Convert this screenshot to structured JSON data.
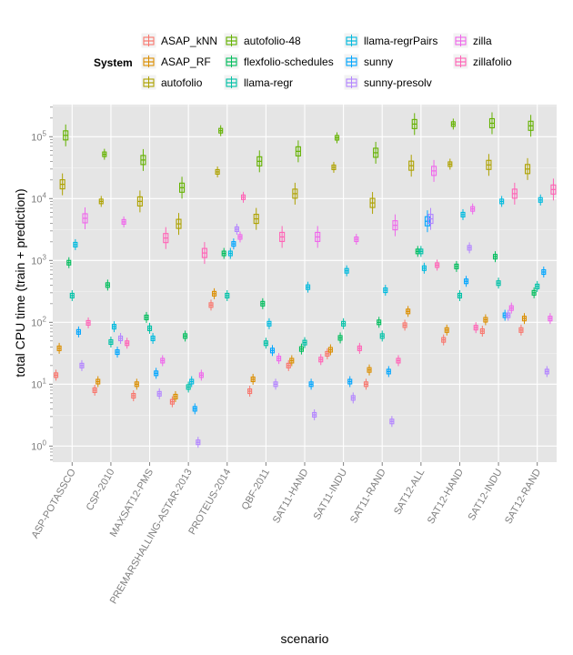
{
  "chart_data": {
    "type": "box",
    "xlabel": "scenario",
    "ylabel": "total CPU time (train + prediction)",
    "yscale": "log10",
    "ylim": [
      0.55,
      330000
    ],
    "y_ticks": [
      {
        "value": 1,
        "base": "10",
        "exp": "0"
      },
      {
        "value": 10,
        "base": "10",
        "exp": "1"
      },
      {
        "value": 100,
        "base": "10",
        "exp": "2"
      },
      {
        "value": 1000,
        "base": "10",
        "exp": "3"
      },
      {
        "value": 10000,
        "base": "10",
        "exp": "4"
      },
      {
        "value": 100000,
        "base": "10",
        "exp": "5"
      }
    ],
    "grid": true,
    "legend_position": "top",
    "legend_title": "System",
    "categories": [
      "ASP-POTASSCO",
      "CSP-2010",
      "MAXSAT12-PMS",
      "PREMARSHALLING-ASTAR-2013",
      "PROTEUS-2014",
      "QBF-2011",
      "SAT11-HAND",
      "SAT11-INDU",
      "SAT11-RAND",
      "SAT12-ALL",
      "SAT12-HAND",
      "SAT12-INDU",
      "SAT12-RAND"
    ],
    "series": [
      {
        "name": "ASAP_kNN",
        "color": "#F8766D",
        "values": [
          14,
          8,
          6.5,
          5.2,
          190,
          7.7,
          20,
          31,
          10,
          90,
          52,
          72,
          75
        ]
      },
      {
        "name": "ASAP_RF",
        "color": "#DB8E00",
        "values": [
          38,
          11,
          10,
          6.3,
          290,
          12,
          24,
          36,
          17,
          150,
          75,
          110,
          115
        ]
      },
      {
        "name": "autofolio",
        "color": "#AEA200",
        "values": [
          17000,
          9000,
          9000,
          3900,
          27000,
          4700,
          12000,
          32000,
          8500,
          34000,
          36000,
          35000,
          30000
        ]
      },
      {
        "name": "autofolio-48",
        "color": "#64B200",
        "values": [
          105000,
          52000,
          42000,
          15000,
          125000,
          40000,
          58000,
          96000,
          55000,
          160000,
          160000,
          165000,
          150000
        ]
      },
      {
        "name": "flexfolio-schedules",
        "color": "#00BD5C",
        "values": [
          920,
          400,
          120,
          60,
          1300,
          200,
          37,
          56,
          100,
          1400,
          800,
          1150,
          300
        ]
      },
      {
        "name": "llama-regr",
        "color": "#00C1A7",
        "values": [
          270,
          48,
          80,
          9,
          270,
          46,
          47,
          95,
          60,
          1400,
          270,
          430,
          380
        ]
      },
      {
        "name": "llama-regrPairs",
        "color": "#00BADE",
        "values": [
          1800,
          85,
          55,
          11,
          1300,
          95,
          370,
          680,
          330,
          750,
          5500,
          9000,
          9500
        ]
      },
      {
        "name": "sunny",
        "color": "#00A6FF",
        "values": [
          70,
          33,
          15,
          4,
          1850,
          35,
          10,
          11,
          16,
          4300,
          460,
          130,
          650
        ]
      },
      {
        "name": "sunny-presolv",
        "color": "#B385FF",
        "values": [
          20,
          55,
          7,
          1.15,
          3200,
          10,
          3.2,
          6,
          2.5,
          4700,
          1600,
          130,
          16
        ]
      },
      {
        "name": "zilla",
        "color": "#EF67EB",
        "values": [
          4800,
          4200,
          24,
          14,
          2400,
          26,
          2400,
          2200,
          3700,
          28000,
          6800,
          170,
          115
        ]
      },
      {
        "name": "zillafolio",
        "color": "#FF63B6",
        "values": [
          98,
          46,
          2300,
          1320,
          10500,
          2400,
          25,
          38,
          24,
          840,
          82,
          12000,
          14000
        ]
      }
    ]
  },
  "legend_items": [
    {
      "label": "ASAP_kNN",
      "color": "#F8766D"
    },
    {
      "label": "ASAP_RF",
      "color": "#DB8E00"
    },
    {
      "label": "autofolio",
      "color": "#AEA200"
    },
    {
      "label": "autofolio-48",
      "color": "#64B200"
    },
    {
      "label": "flexfolio-schedules",
      "color": "#00BD5C"
    },
    {
      "label": "llama-regr",
      "color": "#00C1A7"
    },
    {
      "label": "llama-regrPairs",
      "color": "#00BADE"
    },
    {
      "label": "sunny",
      "color": "#00A6FF"
    },
    {
      "label": "sunny-presolv",
      "color": "#B385FF"
    },
    {
      "label": "zilla",
      "color": "#EF67EB"
    },
    {
      "label": "zillafolio",
      "color": "#FF63B6"
    }
  ]
}
